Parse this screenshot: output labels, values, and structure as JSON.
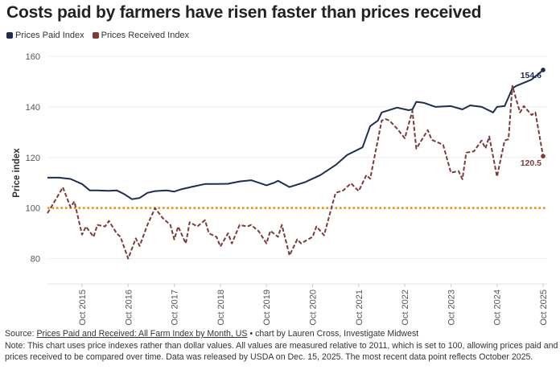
{
  "title": "Costs paid by farmers have risen faster than prices received",
  "colors": {
    "paid": "#1f2d4f",
    "received": "#7b3b3b",
    "reference": "#f08a00",
    "grid": "#eeeeee"
  },
  "chart_data": {
    "type": "line",
    "ylabel": "Price index",
    "xlabel": "",
    "ylim": [
      70,
      160
    ],
    "yticks": [
      "80",
      "100",
      "120",
      "140",
      "160"
    ],
    "xticks": [
      "Oct 2015",
      "Oct 2016",
      "Oct 2017",
      "Oct 2018",
      "Oct 2019",
      "Oct 2020",
      "Oct 2021",
      "Oct 2022",
      "Oct 2023",
      "Oct 2024",
      "Oct 2025"
    ],
    "xlim": [
      "2015-01",
      "2025-10"
    ],
    "grid": true,
    "legend_position": "top-left",
    "reference_line": {
      "value": 100,
      "style": "dotted"
    },
    "series": [
      {
        "name": "Prices Paid Index",
        "style": "solid",
        "end_label": "154.6",
        "points": [
          [
            "2015-01",
            112
          ],
          [
            "2015-04",
            112
          ],
          [
            "2015-07",
            111.5
          ],
          [
            "2015-10",
            109.5
          ],
          [
            "2015-12",
            107
          ],
          [
            "2016-02",
            107
          ],
          [
            "2016-05",
            106.8
          ],
          [
            "2016-07",
            107
          ],
          [
            "2016-09",
            105.5
          ],
          [
            "2016-11",
            103.5
          ],
          [
            "2017-01",
            104
          ],
          [
            "2017-03",
            106
          ],
          [
            "2017-05",
            106.7
          ],
          [
            "2017-08",
            107
          ],
          [
            "2017-10",
            106.5
          ],
          [
            "2017-12",
            107.5
          ],
          [
            "2018-03",
            108.5
          ],
          [
            "2018-06",
            109.5
          ],
          [
            "2018-09",
            109.5
          ],
          [
            "2018-12",
            109.6
          ],
          [
            "2019-03",
            110.5
          ],
          [
            "2019-06",
            111
          ],
          [
            "2019-08",
            110
          ],
          [
            "2019-10",
            109
          ],
          [
            "2019-12",
            110
          ],
          [
            "2020-01",
            110.8
          ],
          [
            "2020-04",
            108.3
          ],
          [
            "2020-08",
            110.2
          ],
          [
            "2020-12",
            113
          ],
          [
            "2021-04",
            117
          ],
          [
            "2021-07",
            121
          ],
          [
            "2021-11",
            124
          ],
          [
            "2022-01",
            132.4
          ],
          [
            "2022-03",
            134.6
          ],
          [
            "2022-04",
            137.8
          ],
          [
            "2022-08",
            139.7
          ],
          [
            "2022-11",
            138.7
          ],
          [
            "2022-12",
            139
          ],
          [
            "2023-01",
            142
          ],
          [
            "2023-03",
            141.6
          ],
          [
            "2023-06",
            140
          ],
          [
            "2023-10",
            140.3
          ],
          [
            "2024-01",
            139
          ],
          [
            "2024-03",
            140.6
          ],
          [
            "2024-06",
            140
          ],
          [
            "2024-09",
            137.8
          ],
          [
            "2024-10",
            140
          ],
          [
            "2024-12",
            140.3
          ],
          [
            "2025-02",
            147.3
          ],
          [
            "2025-03",
            148.3
          ],
          [
            "2025-07",
            150.8
          ],
          [
            "2025-10",
            154.6
          ]
        ]
      },
      {
        "name": "Prices Received Index",
        "style": "dashed",
        "end_label": "120.5",
        "points": [
          [
            "2015-01",
            98
          ],
          [
            "2015-03",
            103
          ],
          [
            "2015-05",
            108.2
          ],
          [
            "2015-07",
            100.3
          ],
          [
            "2015-08",
            102.6
          ],
          [
            "2015-10",
            89.5
          ],
          [
            "2015-11",
            92.7
          ],
          [
            "2016-01",
            88.6
          ],
          [
            "2016-02",
            93.3
          ],
          [
            "2016-04",
            92.7
          ],
          [
            "2016-05",
            94.9
          ],
          [
            "2016-07",
            90
          ],
          [
            "2016-08",
            88.6
          ],
          [
            "2016-10",
            80
          ],
          [
            "2016-12",
            88
          ],
          [
            "2017-01",
            85
          ],
          [
            "2017-03",
            93.3
          ],
          [
            "2017-05",
            100
          ],
          [
            "2017-07",
            96
          ],
          [
            "2017-09",
            93.3
          ],
          [
            "2017-10",
            87.6
          ],
          [
            "2017-11",
            92.7
          ],
          [
            "2018-01",
            86
          ],
          [
            "2018-02",
            94.4
          ],
          [
            "2018-04",
            92.7
          ],
          [
            "2018-06",
            95.2
          ],
          [
            "2018-07",
            90
          ],
          [
            "2018-09",
            88.6
          ],
          [
            "2018-10",
            84.8
          ],
          [
            "2018-12",
            90
          ],
          [
            "2019-01",
            86
          ],
          [
            "2019-03",
            93.3
          ],
          [
            "2019-05",
            92.7
          ],
          [
            "2019-06",
            93.3
          ],
          [
            "2019-08",
            90.8
          ],
          [
            "2019-10",
            86
          ],
          [
            "2019-11",
            91
          ],
          [
            "2020-01",
            88.6
          ],
          [
            "2020-02",
            93.3
          ],
          [
            "2020-04",
            81.3
          ],
          [
            "2020-06",
            87.6
          ],
          [
            "2020-07",
            86
          ],
          [
            "2020-10",
            88.6
          ],
          [
            "2020-11",
            92.7
          ],
          [
            "2021-01",
            89.2
          ],
          [
            "2021-03",
            100.6
          ],
          [
            "2021-04",
            106
          ],
          [
            "2021-06",
            107
          ],
          [
            "2021-08",
            109.8
          ],
          [
            "2021-10",
            106.7
          ],
          [
            "2021-12",
            113
          ],
          [
            "2022-01",
            111.6
          ],
          [
            "2022-04",
            134.6
          ],
          [
            "2022-05",
            135.2
          ],
          [
            "2022-06",
            134.6
          ],
          [
            "2022-08",
            131.4
          ],
          [
            "2022-10",
            127.6
          ],
          [
            "2022-12",
            138.4
          ],
          [
            "2023-01",
            123.5
          ],
          [
            "2023-04",
            130.8
          ],
          [
            "2023-05",
            127
          ],
          [
            "2023-07",
            125.7
          ],
          [
            "2023-08",
            125
          ],
          [
            "2023-10",
            114
          ],
          [
            "2023-12",
            114.6
          ],
          [
            "2024-01",
            111.4
          ],
          [
            "2024-02",
            121.9
          ],
          [
            "2024-04",
            122.4
          ],
          [
            "2024-06",
            126.7
          ],
          [
            "2024-07",
            123.6
          ],
          [
            "2024-08",
            128.3
          ],
          [
            "2024-10",
            112.4
          ],
          [
            "2024-12",
            126.7
          ],
          [
            "2025-01",
            127.2
          ],
          [
            "2025-02",
            148.3
          ],
          [
            "2025-04",
            137.8
          ],
          [
            "2025-05",
            140.3
          ],
          [
            "2025-07",
            136.8
          ],
          [
            "2025-08",
            137.8
          ],
          [
            "2025-10",
            120.5
          ]
        ]
      }
    ]
  },
  "footer": {
    "source_prefix": "Source: ",
    "source_link": "Prices Paid and Received: All Farm Index by Month, US",
    "source_suffix": " • chart by Lauren Cross, Investigate Midwest",
    "note": "Note: This chart uses price indexes rather than dollar values. All values are measured relative to 2011, which is set to 100, allowing prices paid and prices received to be compared over time. Data was released by USDA on Dec. 15, 2025. The most recent data point reflects October 2025."
  }
}
